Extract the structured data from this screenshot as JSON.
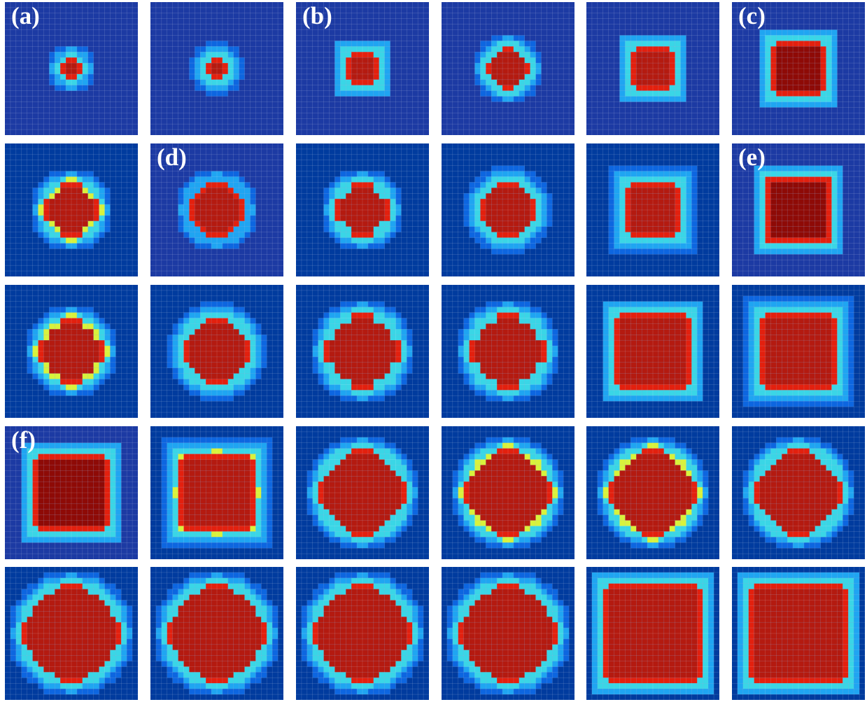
{
  "figure": {
    "rows": 5,
    "columns": 6,
    "grid_cells_per_side": 24,
    "colors": {
      "background_outer": "#1c3aa3",
      "background_inner": "#003b9e",
      "halo_outer": "#0d66e0",
      "halo_inner": "#1fa5f2",
      "edge_cyan": "#3ad6e6",
      "edge_yellow": "#d8f23c",
      "edge_red": "#e3200e",
      "interior": "#b41a10",
      "interior_dark": "#8e0a06",
      "gridline": "#ffffff"
    },
    "panels": [
      {
        "label": "(a)",
        "shape": "ring",
        "size": 4,
        "edge": "cyan"
      },
      {
        "label": "",
        "shape": "disc",
        "size": 5,
        "edge": "cyan"
      },
      {
        "label": "(b)",
        "shape": "square",
        "size": 6,
        "edge": "cyan"
      },
      {
        "label": "",
        "shape": "disc",
        "size": 8,
        "edge": "cyan"
      },
      {
        "label": "",
        "shape": "square",
        "size": 8,
        "edge": "cyan"
      },
      {
        "label": "(c)",
        "shape": "square",
        "size": 10,
        "edge": "cyan"
      },
      {
        "label": "",
        "shape": "disc",
        "size": 10,
        "edge": "yellow"
      },
      {
        "label": "(d)",
        "shape": "disc",
        "size": 10,
        "edge": "red"
      },
      {
        "label": "",
        "shape": "disc",
        "size": 10,
        "edge": "cyan"
      },
      {
        "label": "",
        "shape": "disc",
        "size": 11,
        "edge": "cyan"
      },
      {
        "label": "",
        "shape": "square",
        "size": 11,
        "edge": "cyan"
      },
      {
        "label": "(e)",
        "shape": "square",
        "size": 12,
        "edge": "red"
      },
      {
        "label": "",
        "shape": "disc",
        "size": 12,
        "edge": "yellow"
      },
      {
        "label": "",
        "shape": "disc",
        "size": 13,
        "edge": "cyan"
      },
      {
        "label": "",
        "shape": "disc",
        "size": 14,
        "edge": "cyan"
      },
      {
        "label": "",
        "shape": "disc",
        "size": 14,
        "edge": "cyan"
      },
      {
        "label": "",
        "shape": "square",
        "size": 14,
        "edge": "cyan"
      },
      {
        "label": "",
        "shape": "square",
        "size": 15,
        "edge": "cyan"
      },
      {
        "label": "(f)",
        "shape": "square",
        "size": 14,
        "edge": "cyan"
      },
      {
        "label": "",
        "shape": "square",
        "size": 15,
        "edge": "yellow"
      },
      {
        "label": "",
        "shape": "disc",
        "size": 16,
        "edge": "cyan"
      },
      {
        "label": "",
        "shape": "disc",
        "size": 16,
        "edge": "yellow"
      },
      {
        "label": "",
        "shape": "disc",
        "size": 16,
        "edge": "yellow"
      },
      {
        "label": "",
        "shape": "disc",
        "size": 16,
        "edge": "cyan"
      },
      {
        "label": "",
        "shape": "disc",
        "size": 18,
        "edge": "cyan"
      },
      {
        "label": "",
        "shape": "disc",
        "size": 18,
        "edge": "cyan"
      },
      {
        "label": "",
        "shape": "disc",
        "size": 18,
        "edge": "cyan"
      },
      {
        "label": "",
        "shape": "disc",
        "size": 18,
        "edge": "cyan"
      },
      {
        "label": "",
        "shape": "square",
        "size": 18,
        "edge": "cyan"
      },
      {
        "label": "",
        "shape": "square",
        "size": 18,
        "edge": "cyan"
      }
    ]
  }
}
